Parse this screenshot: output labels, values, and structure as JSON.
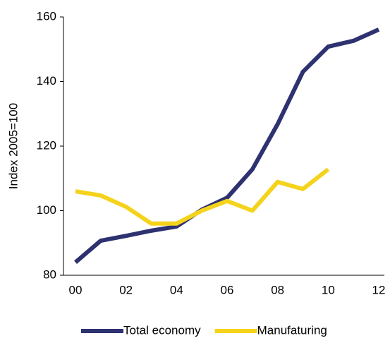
{
  "chart_data": {
    "type": "line",
    "y_label": "Index 2005=100",
    "categories": [
      "00",
      null,
      "02",
      null,
      "04",
      null,
      "06",
      null,
      "08",
      null,
      "10",
      null,
      "12"
    ],
    "series": [
      {
        "name": "Total economy",
        "color": "#2e3270",
        "values": [
          84,
          90.7,
          92.2,
          93.8,
          95.1,
          100.3,
          104,
          112.8,
          126.8,
          143,
          150.8,
          152.6,
          156.1
        ]
      },
      {
        "name": "Manufaturing",
        "color": "#f5d31c",
        "values": [
          106,
          104.7,
          101.2,
          96,
          96,
          100,
          103,
          100,
          108.9,
          106.7,
          112.8,
          null,
          null
        ]
      }
    ],
    "ylim": [
      80,
      160
    ],
    "yticks": [
      80,
      100,
      120,
      140,
      160
    ],
    "grid": false
  }
}
